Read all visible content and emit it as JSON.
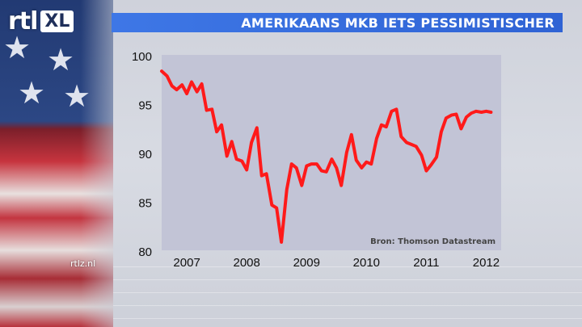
{
  "logo": {
    "brand": "rtl",
    "suffix": "XL"
  },
  "title": "AMERIKAANS MKB IETS PESSIMISTISCHER",
  "channel_label": "rtlz.nl",
  "colors": {
    "title_bar": "#3470dc",
    "line": "#ff1a1a",
    "plot_bg": "#c2c4d6"
  },
  "chart_data": {
    "type": "line",
    "title": "AMERIKAANS MKB IETS PESSIMISTISCHER",
    "source": "Bron: Thomson Datastream",
    "xlabel": "",
    "ylabel": "",
    "ylim": [
      80,
      100
    ],
    "yticks": [
      "100",
      "95",
      "90",
      "85",
      "80"
    ],
    "ytick_values": [
      100,
      95,
      90,
      85,
      80
    ],
    "xticks": [
      "2007",
      "2008",
      "2009",
      "2010",
      "2011",
      "2012"
    ],
    "xtick_values": [
      2007,
      2008,
      2009,
      2010,
      2011,
      2012
    ],
    "xlim": [
      2006.58,
      2012.25
    ],
    "grid": false,
    "legend": "none",
    "series": [
      {
        "x": [
          2006.58,
          2006.67,
          2006.75,
          2006.83,
          2006.92,
          2007.0,
          2007.08,
          2007.17,
          2007.25,
          2007.33,
          2007.42,
          2007.5,
          2007.58,
          2007.67,
          2007.75,
          2007.83,
          2007.92,
          2008.0,
          2008.08,
          2008.17,
          2008.25,
          2008.33,
          2008.42,
          2008.5,
          2008.58,
          2008.67,
          2008.75,
          2008.83,
          2008.92,
          2009.0,
          2009.08,
          2009.17,
          2009.25,
          2009.33,
          2009.42,
          2009.5,
          2009.58,
          2009.67,
          2009.75,
          2009.83,
          2009.92,
          2010.0,
          2010.08,
          2010.17,
          2010.25,
          2010.33,
          2010.42,
          2010.5,
          2010.58,
          2010.67,
          2010.75,
          2010.83,
          2010.92,
          2011.0,
          2011.08,
          2011.17,
          2011.25,
          2011.33,
          2011.42,
          2011.5,
          2011.58,
          2011.67,
          2011.75,
          2011.83,
          2011.92,
          2012.0,
          2012.08
        ],
        "values": [
          98.5,
          98.0,
          97.0,
          96.6,
          97.1,
          96.2,
          97.4,
          96.4,
          97.2,
          94.5,
          94.6,
          92.3,
          93.0,
          89.8,
          91.3,
          89.5,
          89.3,
          88.4,
          91.2,
          92.7,
          87.8,
          88.0,
          84.8,
          84.5,
          81.0,
          86.4,
          89.0,
          88.6,
          86.8,
          88.8,
          89.0,
          89.0,
          88.3,
          88.2,
          89.5,
          88.6,
          86.8,
          90.2,
          92.0,
          89.4,
          88.6,
          89.2,
          89.0,
          91.6,
          93.0,
          92.8,
          94.4,
          94.6,
          91.8,
          91.2,
          91.0,
          90.8,
          89.9,
          88.3,
          88.9,
          89.7,
          92.3,
          93.7,
          94.0,
          94.1,
          92.6,
          93.8,
          94.2,
          94.4,
          94.3,
          94.4,
          94.3
        ]
      }
    ]
  }
}
